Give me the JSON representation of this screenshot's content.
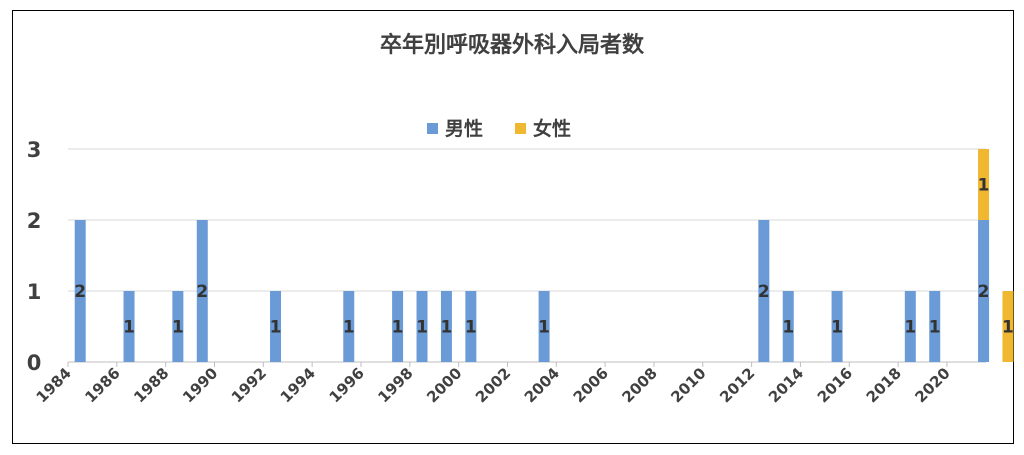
{
  "chart_data": {
    "type": "bar",
    "title": "卒年別呼吸器外科入局者数",
    "xlabel": "",
    "ylabel": "",
    "ylim": [
      0,
      3
    ],
    "yticks": [
      "0",
      "1",
      "2",
      "3"
    ],
    "xlim": [
      1984,
      2021.6
    ],
    "xticks": [
      "1984",
      "1986",
      "1988",
      "1990",
      "1992",
      "1994",
      "1996",
      "1998",
      "2000",
      "2002",
      "2004",
      "2006",
      "2008",
      "2010",
      "2012",
      "2014",
      "2016",
      "2018",
      "2020"
    ],
    "grid": true,
    "legend_position": "top-center",
    "series": [
      {
        "name": "男性",
        "color": "#6b9bd7",
        "points": [
          {
            "x": 1984.5,
            "y": 2
          },
          {
            "x": 1986.5,
            "y": 1
          },
          {
            "x": 1988.5,
            "y": 1
          },
          {
            "x": 1989.5,
            "y": 2
          },
          {
            "x": 1992.5,
            "y": 1
          },
          {
            "x": 1995.5,
            "y": 1
          },
          {
            "x": 1997.5,
            "y": 1
          },
          {
            "x": 1998.5,
            "y": 1
          },
          {
            "x": 1999.5,
            "y": 1
          },
          {
            "x": 2000.5,
            "y": 1
          },
          {
            "x": 2003.5,
            "y": 1
          },
          {
            "x": 2012.5,
            "y": 2
          },
          {
            "x": 2013.5,
            "y": 1
          },
          {
            "x": 2015.5,
            "y": 1
          },
          {
            "x": 2018.5,
            "y": 1
          },
          {
            "x": 2019.5,
            "y": 1
          },
          {
            "x": 2021.5,
            "y": 2
          }
        ]
      },
      {
        "name": "女性",
        "color": "#f0b731",
        "points": [
          {
            "x": 2021.5,
            "y": 1
          },
          {
            "x": 2022.5,
            "y": 1
          }
        ]
      }
    ]
  }
}
